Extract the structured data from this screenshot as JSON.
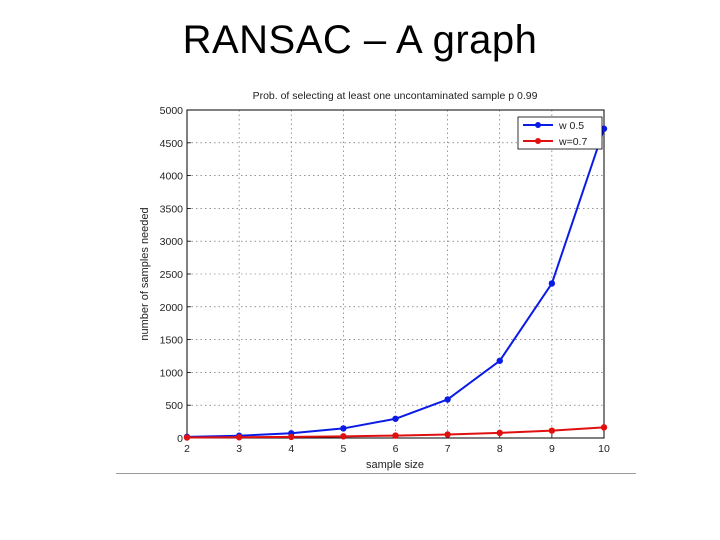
{
  "slide": {
    "title": "RANSAC – A graph"
  },
  "chart_data": {
    "type": "line",
    "title": "Prob. of selecting at least one uncontaminated sample p 0.99",
    "xlabel": "sample size",
    "ylabel": "number of samples needed",
    "x": [
      2,
      3,
      4,
      5,
      6,
      7,
      8,
      9,
      10
    ],
    "xlim": [
      2,
      10
    ],
    "ylim": [
      0,
      5000
    ],
    "yticks": [
      0,
      500,
      1000,
      1500,
      2000,
      2500,
      3000,
      3500,
      4000,
      4500,
      5000
    ],
    "grid": true,
    "legend_position": "top-right",
    "series": [
      {
        "name": "w 0.5",
        "color": "#0a1be6",
        "values": [
          17,
          35,
          72,
          146,
          293,
          588,
          1177,
          2356,
          4714
        ]
      },
      {
        "name": "w=0.7",
        "color": "#e01010",
        "values": [
          7,
          11,
          17,
          25,
          37,
          54,
          78,
          112,
          162
        ]
      }
    ]
  }
}
